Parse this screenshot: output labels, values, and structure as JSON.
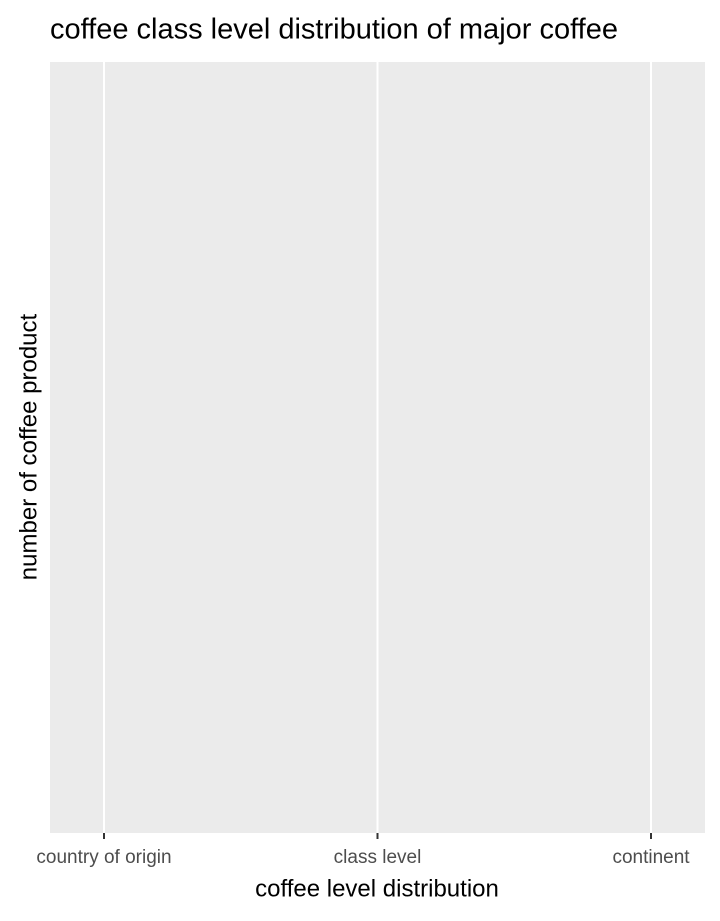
{
  "chart_data": {
    "type": "bar",
    "title": "coffee class level distribution of major coffee",
    "x_label": "coffee level distribution",
    "y_label": "number of coffee product",
    "categories": [
      "country of origin",
      "class level",
      "continent"
    ],
    "grid": true
  }
}
